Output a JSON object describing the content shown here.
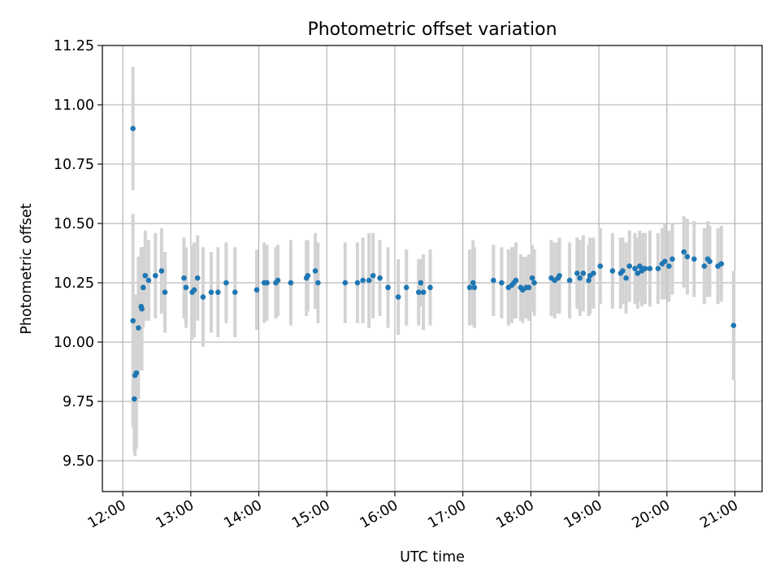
{
  "chart_data": {
    "type": "scatter",
    "title": "Photometric offset variation",
    "xlabel": "UTC time",
    "ylabel": "Photometric offset",
    "x_unit": "hours UTC",
    "xlim": [
      11.7,
      21.4
    ],
    "ylim": [
      9.37,
      11.25
    ],
    "x_ticks": [
      {
        "value": 12,
        "label": "12:00"
      },
      {
        "value": 13,
        "label": "13:00"
      },
      {
        "value": 14,
        "label": "14:00"
      },
      {
        "value": 15,
        "label": "15:00"
      },
      {
        "value": 16,
        "label": "16:00"
      },
      {
        "value": 17,
        "label": "17:00"
      },
      {
        "value": 18,
        "label": "18:00"
      },
      {
        "value": 19,
        "label": "19:00"
      },
      {
        "value": 20,
        "label": "20:00"
      },
      {
        "value": 21,
        "label": "21:00"
      }
    ],
    "y_ticks": [
      {
        "value": 9.5,
        "label": "9.50"
      },
      {
        "value": 9.75,
        "label": "9.75"
      },
      {
        "value": 10.0,
        "label": "10.00"
      },
      {
        "value": 10.25,
        "label": "10.25"
      },
      {
        "value": 10.5,
        "label": "10.50"
      },
      {
        "value": 10.75,
        "label": "10.75"
      },
      {
        "value": 11.0,
        "label": "11.00"
      },
      {
        "value": 11.25,
        "label": "11.25"
      }
    ],
    "grid": true,
    "colors": {
      "points": "#1f77b4",
      "errorbars": "#d3d3d3",
      "grid": "#b0b0b0"
    },
    "series": [
      {
        "x": [
          12.15,
          12.15,
          12.17,
          12.18,
          12.2,
          12.23,
          12.27,
          12.28,
          12.3,
          12.33,
          12.38,
          12.48,
          12.57,
          12.62,
          12.9,
          12.93,
          13.02,
          13.05,
          13.1,
          13.18,
          13.3,
          13.4,
          13.52,
          13.65,
          13.97,
          14.08,
          14.12,
          14.25,
          14.28,
          14.47,
          14.7,
          14.72,
          14.83,
          14.87,
          15.27,
          15.45,
          15.53,
          15.62,
          15.68,
          15.78,
          15.9,
          16.05,
          16.17,
          16.35,
          16.38,
          16.42,
          16.52,
          17.1,
          17.15,
          17.17,
          17.45,
          17.57,
          17.67,
          17.72,
          17.75,
          17.78,
          17.85,
          17.88,
          17.93,
          17.97,
          18.02,
          18.05,
          18.3,
          18.35,
          18.4,
          18.42,
          18.57,
          18.68,
          18.72,
          18.77,
          18.85,
          18.87,
          18.92,
          19.02,
          19.2,
          19.32,
          19.35,
          19.4,
          19.45,
          19.53,
          19.57,
          19.6,
          19.63,
          19.65,
          19.68,
          19.75,
          19.87,
          19.93,
          19.97,
          20.03,
          20.08,
          20.25,
          20.3,
          20.4,
          20.55,
          20.6,
          20.63,
          20.75,
          20.8,
          20.98
        ],
        "y": [
          10.09,
          10.9,
          9.76,
          9.86,
          9.87,
          10.06,
          10.15,
          10.14,
          10.23,
          10.28,
          10.26,
          10.28,
          10.3,
          10.21,
          10.27,
          10.23,
          10.21,
          10.22,
          10.27,
          10.19,
          10.21,
          10.21,
          10.25,
          10.21,
          10.22,
          10.25,
          10.25,
          10.25,
          10.26,
          10.25,
          10.27,
          10.28,
          10.3,
          10.25,
          10.25,
          10.25,
          10.26,
          10.26,
          10.28,
          10.27,
          10.23,
          10.19,
          10.23,
          10.21,
          10.25,
          10.21,
          10.23,
          10.23,
          10.25,
          10.23,
          10.26,
          10.25,
          10.23,
          10.24,
          10.25,
          10.26,
          10.23,
          10.22,
          10.23,
          10.23,
          10.27,
          10.25,
          10.27,
          10.26,
          10.27,
          10.28,
          10.26,
          10.29,
          10.27,
          10.29,
          10.26,
          10.28,
          10.29,
          10.32,
          10.3,
          10.29,
          10.3,
          10.27,
          10.32,
          10.31,
          10.29,
          10.32,
          10.3,
          10.31,
          10.31,
          10.31,
          10.31,
          10.33,
          10.34,
          10.32,
          10.35,
          10.38,
          10.36,
          10.35,
          10.32,
          10.35,
          10.34,
          10.32,
          10.33,
          10.07
        ],
        "err": [
          0.45,
          0.26,
          0.22,
          0.34,
          0.32,
          0.3,
          0.25,
          0.26,
          0.17,
          0.19,
          0.17,
          0.18,
          0.18,
          0.17,
          0.17,
          0.17,
          0.2,
          0.2,
          0.18,
          0.21,
          0.17,
          0.19,
          0.17,
          0.19,
          0.17,
          0.17,
          0.16,
          0.15,
          0.15,
          0.18,
          0.16,
          0.15,
          0.16,
          0.17,
          0.17,
          0.17,
          0.18,
          0.2,
          0.18,
          0.16,
          0.17,
          0.16,
          0.16,
          0.14,
          0.1,
          0.16,
          0.16,
          0.16,
          0.18,
          0.17,
          0.15,
          0.15,
          0.16,
          0.16,
          0.15,
          0.16,
          0.14,
          0.14,
          0.13,
          0.14,
          0.14,
          0.14,
          0.16,
          0.16,
          0.15,
          0.16,
          0.16,
          0.15,
          0.16,
          0.16,
          0.15,
          0.16,
          0.15,
          0.16,
          0.16,
          0.15,
          0.14,
          0.15,
          0.15,
          0.15,
          0.15,
          0.15,
          0.15,
          0.15,
          0.15,
          0.16,
          0.15,
          0.15,
          0.16,
          0.15,
          0.15,
          0.15,
          0.16,
          0.16,
          0.16,
          0.16,
          0.15,
          0.16,
          0.16,
          0.23
        ]
      }
    ]
  }
}
